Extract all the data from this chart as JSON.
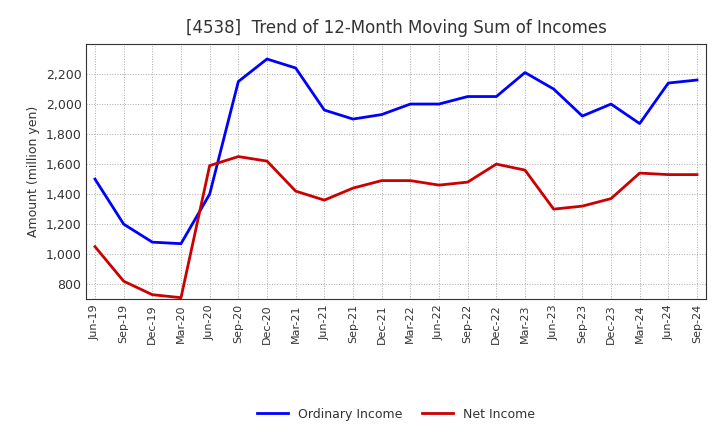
{
  "title": "[4538]  Trend of 12-Month Moving Sum of Incomes",
  "ylabel": "Amount (million yen)",
  "x_labels": [
    "Jun-19",
    "Sep-19",
    "Dec-19",
    "Mar-20",
    "Jun-20",
    "Sep-20",
    "Dec-20",
    "Mar-21",
    "Jun-21",
    "Sep-21",
    "Dec-21",
    "Mar-22",
    "Jun-22",
    "Sep-22",
    "Dec-22",
    "Mar-23",
    "Jun-23",
    "Sep-23",
    "Dec-23",
    "Mar-24",
    "Jun-24",
    "Sep-24"
  ],
  "ordinary_income": [
    1500,
    1200,
    1080,
    1070,
    1400,
    2150,
    2300,
    2240,
    1960,
    1900,
    1930,
    2000,
    2000,
    2050,
    2050,
    2210,
    2100,
    1920,
    2000,
    1870,
    2140,
    2160
  ],
  "net_income": [
    1050,
    820,
    730,
    710,
    1590,
    1650,
    1620,
    1420,
    1360,
    1440,
    1490,
    1490,
    1460,
    1480,
    1600,
    1560,
    1300,
    1320,
    1370,
    1540,
    1530,
    1530
  ],
  "ordinary_color": "#0000FF",
  "net_color": "#CC0000",
  "ylim": [
    700,
    2400
  ],
  "yticks": [
    800,
    1000,
    1200,
    1400,
    1600,
    1800,
    2000,
    2200
  ],
  "grid_color": "#aaaaaa",
  "bg_color": "#ffffff",
  "title_fontsize": 12,
  "title_color": "#333333",
  "axis_fontsize": 9,
  "legend_fontsize": 9,
  "line_width": 2.0
}
